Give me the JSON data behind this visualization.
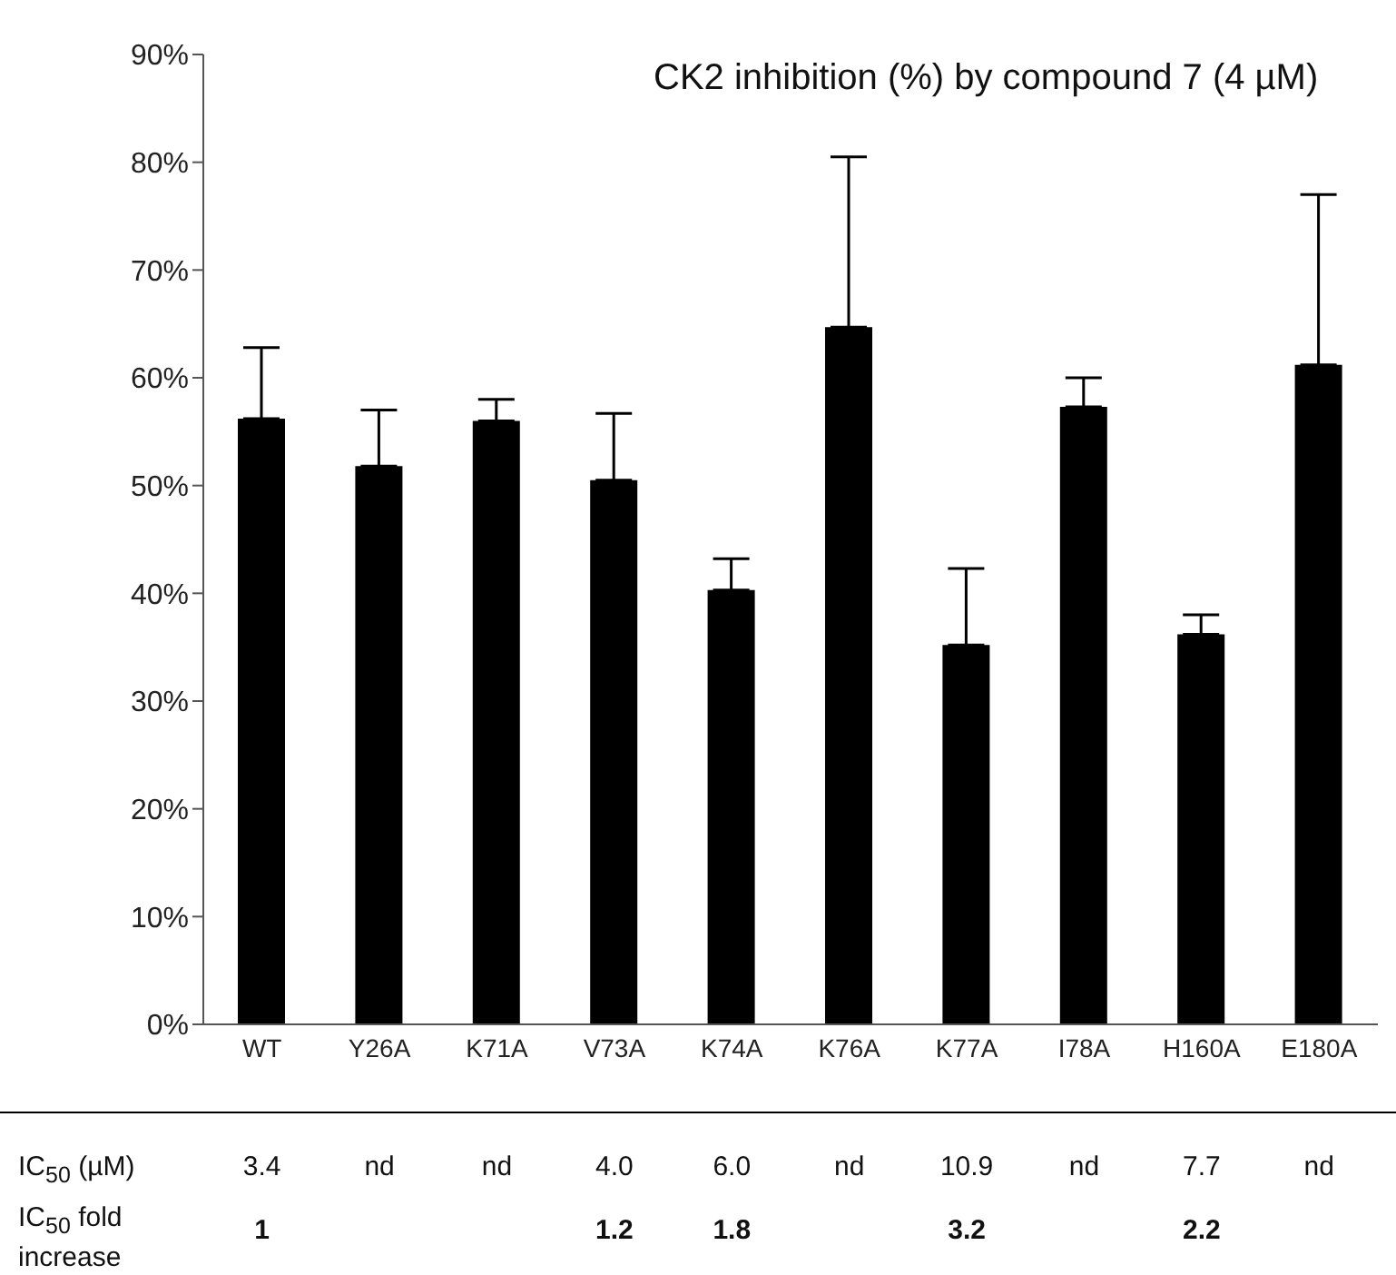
{
  "chart_data": [
    {
      "type": "bar",
      "title": "CK2 inhibition (%) by compound 7 (4 µM)",
      "categories": [
        "WT",
        "Y26A",
        "K71A",
        "V73A",
        "K74A",
        "K76A",
        "K77A",
        "I78A",
        "H160A",
        "E180A"
      ],
      "values": [
        56.2,
        51.8,
        56,
        50.5,
        40.3,
        64.7,
        35.2,
        57.3,
        36.2,
        61.2
      ],
      "errors": [
        [
          56.2,
          62.8
        ],
        [
          51.8,
          57
        ],
        [
          56,
          58
        ],
        [
          50.5,
          56.7
        ],
        [
          40.3,
          43.2
        ],
        [
          64.7,
          80.5
        ],
        [
          35.2,
          42.3
        ],
        [
          57.3,
          60
        ],
        [
          36.2,
          38
        ],
        [
          61.2,
          77
        ]
      ],
      "color": "#000000",
      "ylim": [
        0,
        90
      ],
      "yticks": [
        {
          "value": 0,
          "label": "0%"
        },
        {
          "value": 10,
          "label": "10%"
        },
        {
          "value": 20,
          "label": "20%"
        },
        {
          "value": 30,
          "label": "30%"
        },
        {
          "value": 40,
          "label": "40%"
        },
        {
          "value": 50,
          "label": "50%"
        },
        {
          "value": 60,
          "label": "60%"
        },
        {
          "value": 70,
          "label": "70%"
        },
        {
          "value": 80,
          "label": "80%"
        },
        {
          "value": 90,
          "label": "90%"
        }
      ],
      "grid": false,
      "legend": false
    },
    {
      "type": "heatmap",
      "categories": [
        null,
        null,
        null,
        null,
        null,
        null,
        null,
        null,
        null,
        null
      ],
      "y_categories": [
        "IC$_{50}$ (µM)",
        "IC$_{50}$ fold increase"
      ],
      "cells": [
        [
          null,
          null,
          null,
          null,
          null,
          null,
          null,
          null,
          null,
          null
        ],
        [
          null,
          null,
          null,
          null,
          null,
          null,
          null,
          null,
          null,
          null
        ]
      ],
      "cell_labels": [
        [
          "3.4",
          "nd",
          "nd",
          "4.0",
          "6.0",
          "nd",
          "10.9",
          "nd",
          "7.7",
          "nd"
        ],
        [
          "1",
          null,
          null,
          "1.2",
          "1.8",
          null,
          "3.2",
          null,
          "2.2",
          null
        ]
      ],
      "tick_labels": "y"
    }
  ]
}
